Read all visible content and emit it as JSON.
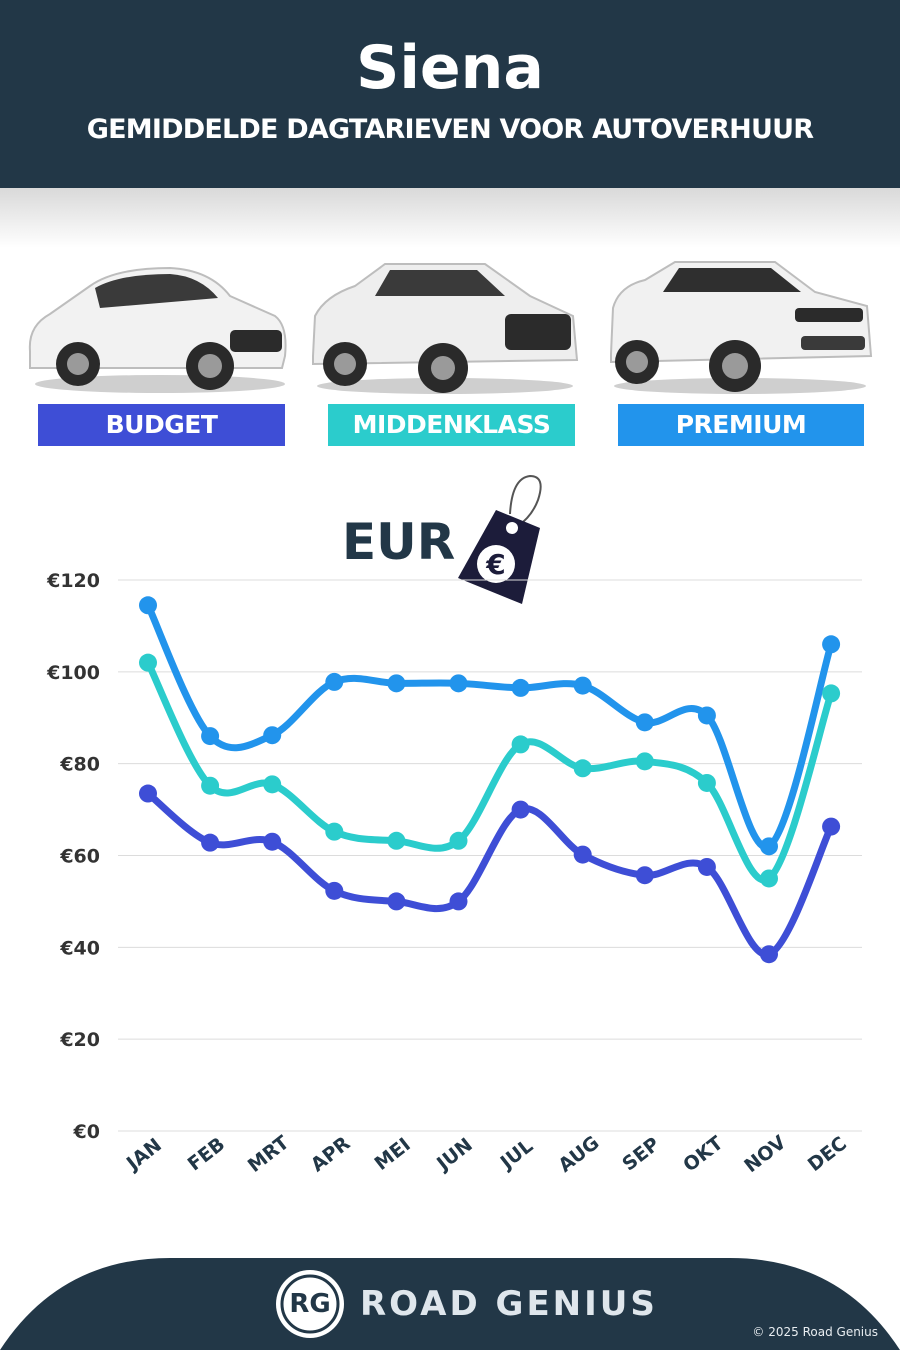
{
  "header": {
    "title": "Siena",
    "subtitle": "GEMIDDELDE DAGTARIEVEN VOOR AUTOVERHUUR"
  },
  "categories": [
    {
      "label": "BUDGET",
      "color": "#3e4ed6"
    },
    {
      "label": "MIDDENKLASS",
      "color": "#2bcccc"
    },
    {
      "label": "PREMIUM",
      "color": "#2294ec"
    }
  ],
  "currency_label": "EUR",
  "chart_data": {
    "type": "line",
    "categories": [
      "JAN",
      "FEB",
      "MRT",
      "APR",
      "MEI",
      "JUN",
      "JUL",
      "AUG",
      "SEP",
      "OKT",
      "NOV",
      "DEC"
    ],
    "series": [
      {
        "name": "PREMIUM",
        "color": "#2294ec",
        "values": [
          114.5,
          86.0,
          86.2,
          97.8,
          97.5,
          97.5,
          96.5,
          97.0,
          89.0,
          90.5,
          62.0,
          106.0
        ]
      },
      {
        "name": "MIDDENKLASS",
        "color": "#2bcccc",
        "values": [
          102.0,
          75.2,
          75.5,
          65.2,
          63.2,
          63.2,
          84.2,
          79.0,
          80.5,
          75.8,
          55.0,
          95.3
        ]
      },
      {
        "name": "BUDGET",
        "color": "#3e4ed6",
        "values": [
          73.5,
          62.8,
          63.0,
          52.3,
          50.0,
          50.0,
          70.0,
          60.2,
          55.7,
          57.5,
          38.5,
          66.3
        ]
      }
    ],
    "yticks": [
      "€0",
      "€20",
      "€40",
      "€60",
      "€80",
      "€100",
      "€120"
    ],
    "ylim": [
      0,
      120
    ],
    "grid": true
  },
  "footer": {
    "logo_text": "RG",
    "brand": "ROAD GENIUS",
    "copyright": "© 2025 Road Genius",
    "background": "#223747"
  }
}
